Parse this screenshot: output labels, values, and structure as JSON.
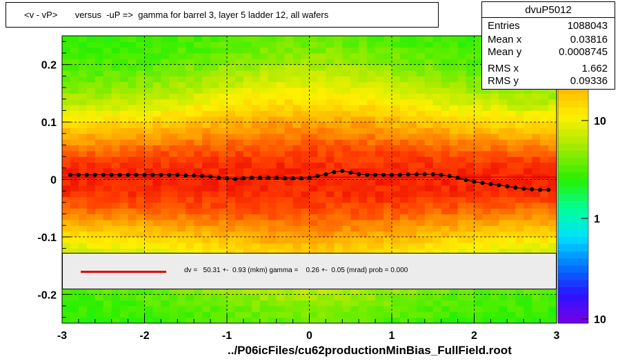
{
  "title": "<v - vP>       versus  -uP =>  gamma for barrel 3, layer 5 ladder 12, all wafers",
  "stats": {
    "name": "dvuP5012",
    "rows": [
      {
        "label": "Entries",
        "value": "1088043"
      },
      {
        "label": "Mean x",
        "value": "0.03816"
      },
      {
        "label": "Mean y",
        "value": "0.0008745"
      },
      {
        "label": "RMS x",
        "value": "1.662"
      },
      {
        "label": "RMS y",
        "value": "0.09336"
      }
    ]
  },
  "fit": {
    "text": "dv =   50.31 +-  0.93 (mkm) gamma =    0.26 +-  0.05 (mrad) prob = 0.000",
    "line_color": "#e00000"
  },
  "footer": "../P06icFiles/cu62productionMinBias_FullField.root",
  "chart_data": {
    "type": "heatmap",
    "xlim": [
      -3,
      3
    ],
    "ylim": [
      -0.25,
      0.25
    ],
    "x_ticks": [
      "-3",
      "-2",
      "-1",
      "0",
      "1",
      "2",
      "3"
    ],
    "y_ticks": [
      "-0.2",
      "-0.1",
      "0",
      "0.1",
      "0.2"
    ],
    "colorbar_ticks": [
      "10",
      "1",
      "10"
    ],
    "colorbar_scale": "log",
    "grid": true,
    "profile_series": {
      "x": [
        -2.9,
        -2.8,
        -2.7,
        -2.6,
        -2.5,
        -2.4,
        -2.3,
        -2.2,
        -2.1,
        -2.0,
        -1.9,
        -1.8,
        -1.7,
        -1.6,
        -1.5,
        -1.4,
        -1.3,
        -1.2,
        -1.1,
        -1.0,
        -0.9,
        -0.8,
        -0.7,
        -0.6,
        -0.5,
        -0.4,
        -0.3,
        -0.2,
        -0.1,
        0.0,
        0.1,
        0.2,
        0.3,
        0.4,
        0.5,
        0.6,
        0.7,
        0.8,
        0.9,
        1.0,
        1.1,
        1.2,
        1.3,
        1.4,
        1.5,
        1.6,
        1.7,
        1.8,
        1.9,
        2.0,
        2.1,
        2.2,
        2.3,
        2.4,
        2.5,
        2.6,
        2.7,
        2.8,
        2.9
      ],
      "y": [
        0.008,
        0.008,
        0.008,
        0.008,
        0.008,
        0.008,
        0.008,
        0.008,
        0.008,
        0.008,
        0.008,
        0.008,
        0.008,
        0.008,
        0.007,
        0.007,
        0.006,
        0.005,
        0.003,
        0.002,
        0.001,
        0.002,
        0.003,
        0.003,
        0.003,
        0.003,
        0.002,
        0.002,
        0.002,
        0.003,
        0.006,
        0.009,
        0.013,
        0.015,
        0.012,
        0.009,
        0.008,
        0.008,
        0.008,
        0.008,
        0.008,
        0.009,
        0.009,
        0.009,
        0.009,
        0.008,
        0.006,
        0.003,
        -0.001,
        -0.004,
        -0.006,
        -0.008,
        -0.01,
        -0.012,
        -0.014,
        -0.016,
        -0.017,
        -0.018,
        -0.018
      ]
    },
    "fit_line_y": 0.004
  }
}
